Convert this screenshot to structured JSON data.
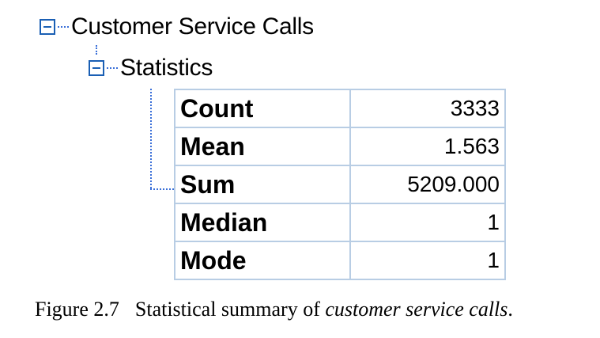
{
  "tree": {
    "root": {
      "label": "Customer Service Calls",
      "icon": "minus-box-icon"
    },
    "child": {
      "label": "Statistics",
      "icon": "minus-box-icon"
    }
  },
  "statistics": {
    "rows": [
      {
        "label": "Count",
        "value": "3333"
      },
      {
        "label": "Mean",
        "value": "1.563"
      },
      {
        "label": "Sum",
        "value": "5209.000"
      },
      {
        "label": "Median",
        "value": "1"
      },
      {
        "label": "Mode",
        "value": "1"
      }
    ]
  },
  "caption": {
    "number": "Figure 2.7",
    "text": "Statistical summary of ",
    "italic": "customer service calls",
    "end": "."
  },
  "colors": {
    "toggle_border": "#1a5fb4",
    "tree_lines": "#3a6fd8",
    "cell_border": "#b8cde4",
    "table_border": "#8a8a8a"
  }
}
